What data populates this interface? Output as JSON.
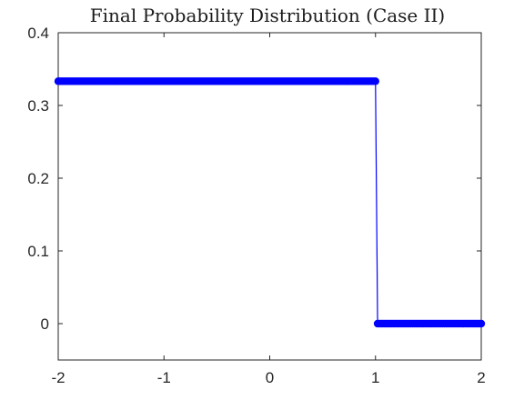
{
  "chart_data": {
    "type": "line",
    "title": "Final Probability Distribution (Case II)",
    "xlabel": "",
    "ylabel": "",
    "xlim": [
      -2,
      2
    ],
    "ylim": [
      -0.05,
      0.4
    ],
    "xticks": [
      -2,
      -1,
      0,
      1,
      2
    ],
    "xtick_labels": [
      "-2",
      "-1",
      "0",
      "1",
      "2"
    ],
    "yticks": [
      0,
      0.1,
      0.2,
      0.3,
      0.4
    ],
    "ytick_labels": [
      "0",
      "0.1",
      "0.2",
      "0.3",
      "0.4"
    ],
    "grid": false,
    "legend": "none",
    "series": [
      {
        "color": "#0000ff",
        "marker": "filled-circle",
        "segments": [
          {
            "x_start": -2,
            "x_end": 1.0,
            "y": 0.3333
          },
          {
            "x_start": 1.0,
            "x_end": 2,
            "y": 0
          }
        ],
        "jump": {
          "x": [
            1.0,
            1.02
          ],
          "y": [
            0.3333,
            0
          ]
        }
      }
    ]
  }
}
